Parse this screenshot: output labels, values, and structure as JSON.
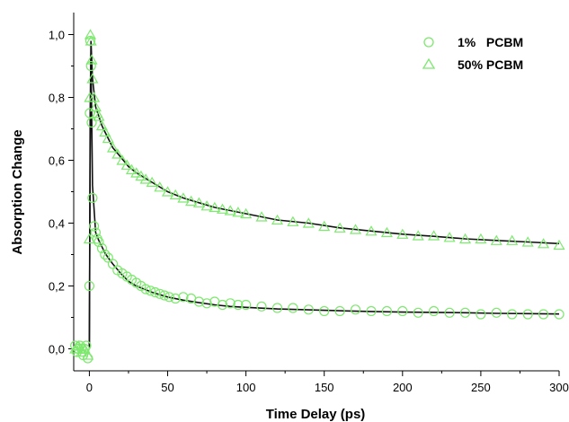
{
  "chart_data": {
    "type": "scatter",
    "xlabel": "Time Delay (ps)",
    "ylabel": "Absorption Change",
    "xlim": [
      -10,
      300
    ],
    "ylim": [
      -0.07,
      1.07
    ],
    "x_ticks": [
      0,
      50,
      100,
      150,
      200,
      250,
      300
    ],
    "x_tick_labels": [
      "0",
      "50",
      "100",
      "150",
      "200",
      "250",
      "300"
    ],
    "y_ticks": [
      0.0,
      0.2,
      0.4,
      0.6,
      0.8,
      1.0
    ],
    "y_tick_labels": [
      "0,0",
      "0,2",
      "0,4",
      "0,6",
      "0,8",
      "1,0"
    ],
    "grid": false,
    "legend_position": "top-right",
    "colors": {
      "data": "#7ee86f",
      "fit": "#111111",
      "axis": "#000000"
    },
    "series": [
      {
        "name": "1%   PCBM",
        "marker": "circle",
        "x": [
          -9,
          -8,
          -7,
          -6,
          -5,
          -4,
          -3,
          -2,
          -1,
          0,
          0.3,
          0.6,
          1,
          1.5,
          2,
          3,
          4,
          5,
          6,
          8,
          10,
          12,
          15,
          18,
          21,
          24,
          27,
          30,
          33,
          36,
          39,
          42,
          45,
          48,
          51,
          55,
          60,
          65,
          70,
          75,
          80,
          85,
          90,
          95,
          100,
          110,
          120,
          130,
          140,
          150,
          160,
          170,
          180,
          190,
          200,
          210,
          220,
          230,
          240,
          250,
          260,
          270,
          280,
          290,
          300
        ],
        "y": [
          0.01,
          -0.01,
          0.0,
          0.01,
          0.0,
          -0.02,
          0.0,
          0.01,
          -0.03,
          0.2,
          0.75,
          0.98,
          0.9,
          0.72,
          0.48,
          0.39,
          0.37,
          0.35,
          0.34,
          0.32,
          0.3,
          0.29,
          0.27,
          0.25,
          0.24,
          0.23,
          0.22,
          0.21,
          0.2,
          0.19,
          0.185,
          0.18,
          0.175,
          0.17,
          0.165,
          0.16,
          0.165,
          0.16,
          0.15,
          0.145,
          0.15,
          0.14,
          0.145,
          0.14,
          0.14,
          0.135,
          0.13,
          0.13,
          0.125,
          0.12,
          0.12,
          0.125,
          0.12,
          0.12,
          0.12,
          0.115,
          0.12,
          0.115,
          0.115,
          0.11,
          0.115,
          0.11,
          0.11,
          0.11,
          0.11
        ]
      },
      {
        "name": "50% PCBM",
        "marker": "triangle",
        "x": [
          -9,
          -7,
          -5,
          -3,
          -1,
          0,
          0.3,
          0.6,
          1,
          1.5,
          2,
          3,
          4,
          5,
          6,
          8,
          10,
          12,
          15,
          18,
          21,
          24,
          27,
          30,
          33,
          36,
          40,
          45,
          50,
          55,
          60,
          65,
          70,
          75,
          80,
          85,
          90,
          95,
          100,
          110,
          120,
          130,
          140,
          150,
          160,
          170,
          180,
          190,
          200,
          210,
          220,
          230,
          240,
          250,
          260,
          270,
          280,
          290,
          300
        ],
        "y": [
          0.0,
          0.01,
          -0.01,
          0.0,
          -0.02,
          0.35,
          0.8,
          1.0,
          0.98,
          0.92,
          0.86,
          0.8,
          0.77,
          0.75,
          0.74,
          0.71,
          0.69,
          0.67,
          0.64,
          0.62,
          0.6,
          0.585,
          0.57,
          0.56,
          0.55,
          0.54,
          0.53,
          0.515,
          0.5,
          0.49,
          0.48,
          0.47,
          0.465,
          0.455,
          0.45,
          0.445,
          0.44,
          0.435,
          0.43,
          0.42,
          0.41,
          0.405,
          0.4,
          0.39,
          0.385,
          0.38,
          0.375,
          0.37,
          0.365,
          0.36,
          0.36,
          0.355,
          0.35,
          0.35,
          0.345,
          0.345,
          0.34,
          0.335,
          0.33
        ]
      }
    ],
    "fit_curves": [
      {
        "x": [
          0,
          0.5,
          1,
          2,
          4,
          6,
          8,
          10,
          12,
          15,
          20,
          25,
          30,
          40,
          50,
          60,
          70,
          80,
          90,
          100,
          120,
          140,
          160,
          180,
          200,
          220,
          240,
          260,
          280,
          300
        ],
        "y": [
          0.0,
          0.6,
          0.94,
          0.52,
          0.37,
          0.345,
          0.325,
          0.305,
          0.29,
          0.27,
          0.24,
          0.215,
          0.2,
          0.18,
          0.165,
          0.155,
          0.147,
          0.14,
          0.135,
          0.132,
          0.127,
          0.124,
          0.121,
          0.119,
          0.117,
          0.116,
          0.115,
          0.113,
          0.112,
          0.111
        ]
      },
      {
        "x": [
          0,
          0.5,
          1,
          2,
          4,
          6,
          8,
          10,
          12,
          15,
          20,
          25,
          30,
          40,
          50,
          60,
          70,
          80,
          90,
          100,
          120,
          140,
          160,
          180,
          200,
          220,
          240,
          260,
          280,
          300
        ],
        "y": [
          0.0,
          0.75,
          0.98,
          0.86,
          0.77,
          0.74,
          0.71,
          0.69,
          0.67,
          0.64,
          0.61,
          0.58,
          0.56,
          0.53,
          0.5,
          0.48,
          0.465,
          0.45,
          0.44,
          0.43,
          0.41,
          0.4,
          0.385,
          0.375,
          0.365,
          0.358,
          0.35,
          0.345,
          0.34,
          0.335
        ]
      }
    ]
  }
}
